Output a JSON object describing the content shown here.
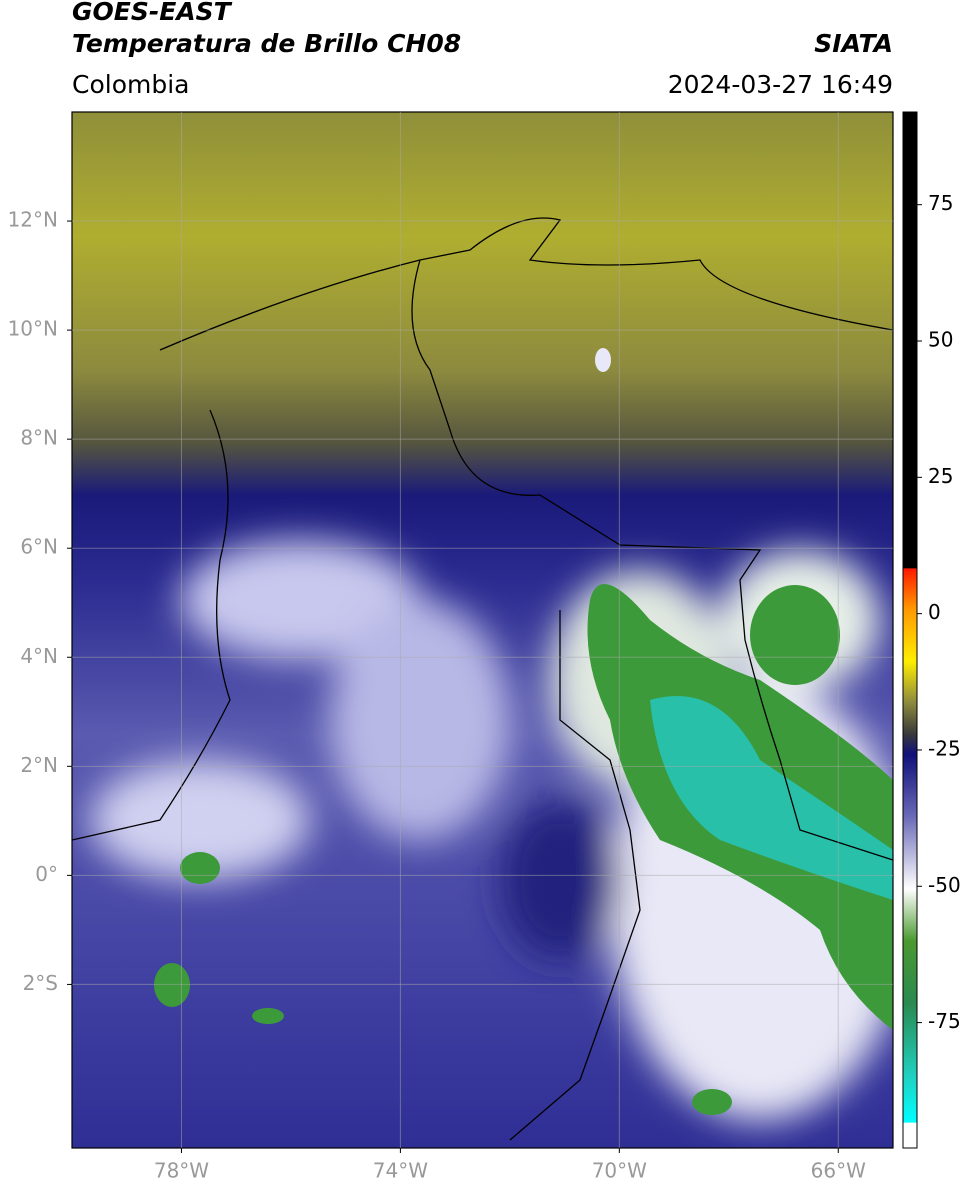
{
  "header": {
    "title": "GOES-EAST",
    "subtitle": "Temperatura de Brillo CH08",
    "source": "SIATA",
    "region": "Colombia",
    "datetime": "2024-03-27 16:49"
  },
  "map": {
    "xlim": [
      -80,
      -65
    ],
    "ylim": [
      -5,
      14
    ],
    "grid": true,
    "xticks": [
      {
        "value": -78,
        "label": "78°W"
      },
      {
        "value": -74,
        "label": "74°W"
      },
      {
        "value": -70,
        "label": "70°W"
      },
      {
        "value": -66,
        "label": "66°W"
      }
    ],
    "yticks": [
      {
        "value": 12,
        "label": "12°N"
      },
      {
        "value": 10,
        "label": "10°N"
      },
      {
        "value": 8,
        "label": "8°N"
      },
      {
        "value": 6,
        "label": "6°N"
      },
      {
        "value": 4,
        "label": "4°N"
      },
      {
        "value": 2,
        "label": "2°N"
      },
      {
        "value": 0,
        "label": "0°"
      },
      {
        "value": -2,
        "label": "2°S"
      }
    ]
  },
  "colorbar": {
    "lim": [
      -98,
      92
    ],
    "ticks": [
      75,
      50,
      25,
      0,
      -25,
      -50,
      -75
    ]
  }
}
